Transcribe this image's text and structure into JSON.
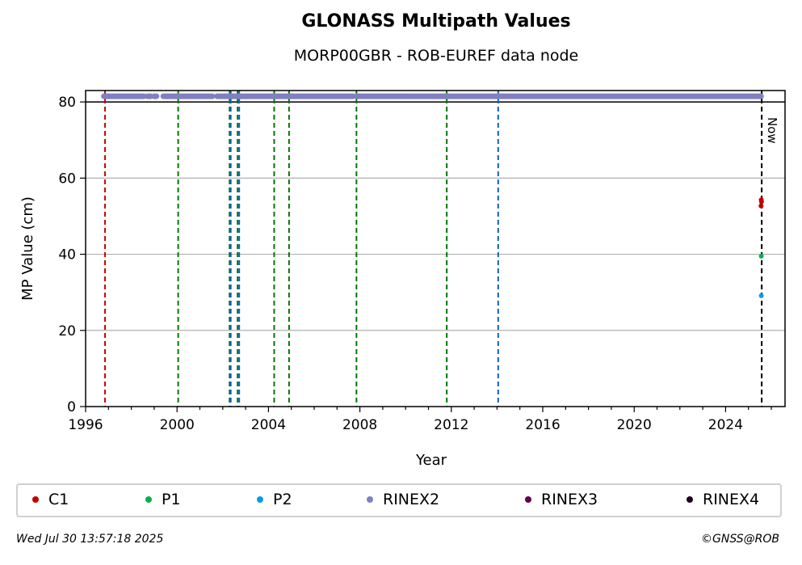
{
  "chart_data": {
    "type": "scatter",
    "title": "GLONASS Multipath Values",
    "subtitle": "MORP00GBR - ROB-EUREF data node",
    "xlabel": "Year",
    "ylabel": "MP Value (cm)",
    "xlim": [
      1996,
      2026.6
    ],
    "ylim": [
      0,
      83
    ],
    "xticks": [
      1996,
      2000,
      2004,
      2008,
      2012,
      2016,
      2020,
      2024
    ],
    "yticks": [
      0,
      20,
      40,
      60,
      80
    ],
    "grid": "horizontal",
    "now_label": "Now",
    "now_x": 2025.58,
    "reference_line_y": 80,
    "vertical_events": [
      {
        "x": 1996.85,
        "color": "#cc0000"
      },
      {
        "x": 2000.05,
        "color": "#007700"
      },
      {
        "x": 2002.3,
        "color": "#007700"
      },
      {
        "x": 2002.35,
        "color": "#1060c0"
      },
      {
        "x": 2002.65,
        "color": "#007700"
      },
      {
        "x": 2002.72,
        "color": "#1060c0"
      },
      {
        "x": 2004.25,
        "color": "#007700"
      },
      {
        "x": 2004.9,
        "color": "#007700"
      },
      {
        "x": 2007.85,
        "color": "#007700"
      },
      {
        "x": 2011.8,
        "color": "#007700"
      },
      {
        "x": 2014.05,
        "color": "#1060c0"
      }
    ],
    "rinex2_segments": [
      [
        1996.8,
        1998.55
      ],
      [
        1998.7,
        1998.85
      ],
      [
        1999.0,
        1999.1
      ],
      [
        1999.4,
        2001.55
      ],
      [
        2001.75,
        2007.7
      ],
      [
        2007.85,
        2025.55
      ]
    ],
    "rinex2_y": 81.5,
    "series": [
      {
        "name": "C1",
        "color": "#c00000",
        "points": [
          [
            2025.55,
            52.7
          ],
          [
            2025.57,
            53.8
          ],
          [
            2025.56,
            54.3
          ]
        ]
      },
      {
        "name": "P1",
        "color": "#00b050",
        "points": [
          [
            2025.56,
            39.5
          ]
        ]
      },
      {
        "name": "P2",
        "color": "#00a0e0",
        "points": [
          [
            2025.56,
            29.1
          ]
        ]
      },
      {
        "name": "RINEX2",
        "color": "#8080c0",
        "points": []
      },
      {
        "name": "RINEX3",
        "color": "#600050",
        "points": []
      },
      {
        "name": "RINEX4",
        "color": "#200020",
        "points": []
      }
    ]
  },
  "legend": [
    {
      "label": "C1",
      "color": "#c00000"
    },
    {
      "label": "P1",
      "color": "#00b050"
    },
    {
      "label": "P2",
      "color": "#00a0e0"
    },
    {
      "label": "RINEX2",
      "color": "#8080c0"
    },
    {
      "label": "RINEX3",
      "color": "#600050"
    },
    {
      "label": "RINEX4",
      "color": "#200020"
    }
  ],
  "footer": {
    "timestamp": "Wed Jul 30 13:57:18 2025",
    "credit": "©GNSS@ROB"
  }
}
